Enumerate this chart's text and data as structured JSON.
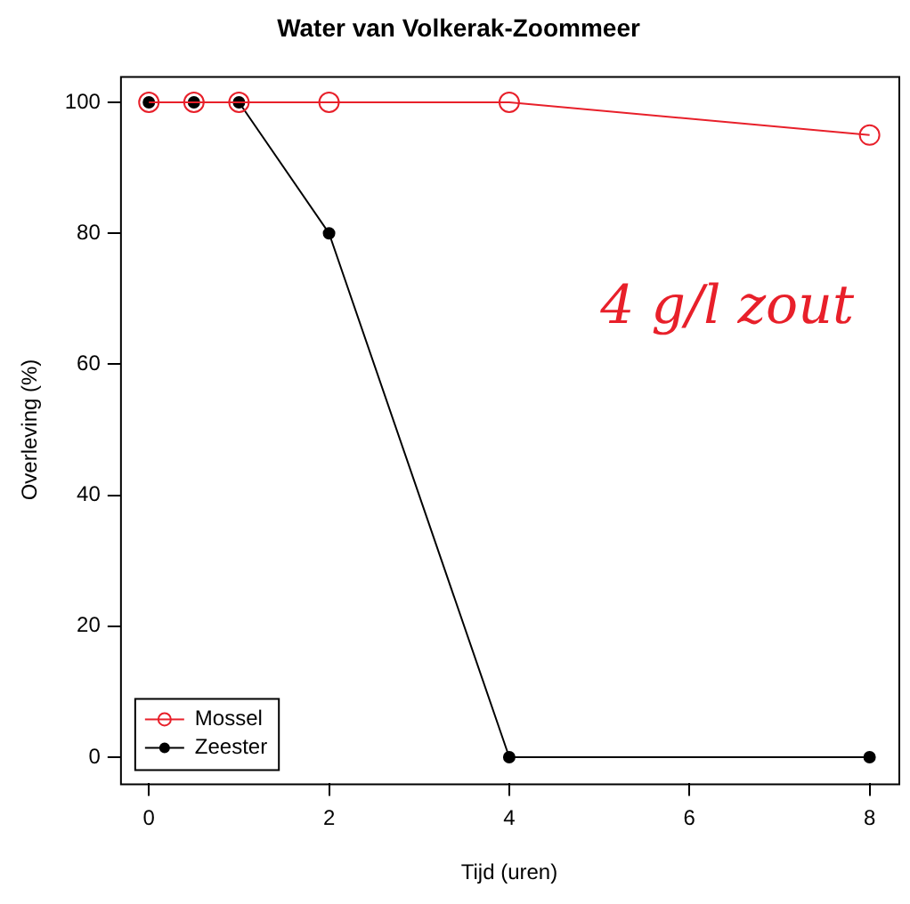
{
  "chart_data": {
    "type": "line",
    "title": "Water van Volkerak-Zoommeer",
    "xlabel": "Tijd (uren)",
    "ylabel": "Overleving (%)",
    "x": [
      0,
      0.5,
      1,
      2,
      4,
      8
    ],
    "series": [
      {
        "name": "Mossel",
        "color": "#e8202a",
        "values": [
          100,
          100,
          100,
          100,
          100,
          95
        ]
      },
      {
        "name": "Zeester",
        "color": "#000000",
        "values": [
          100,
          100,
          100,
          80,
          0,
          0
        ]
      }
    ],
    "xlim": [
      -0.32,
      8.32
    ],
    "xticks": [
      0,
      2,
      4,
      6,
      8
    ],
    "ylim": [
      -4,
      104
    ],
    "yticks": [
      0,
      20,
      40,
      60,
      80,
      100
    ],
    "grid": false,
    "legend": "bottom left",
    "marker": "circle",
    "line_style": "solid",
    "annotations": [
      "4 g/l zout"
    ]
  }
}
